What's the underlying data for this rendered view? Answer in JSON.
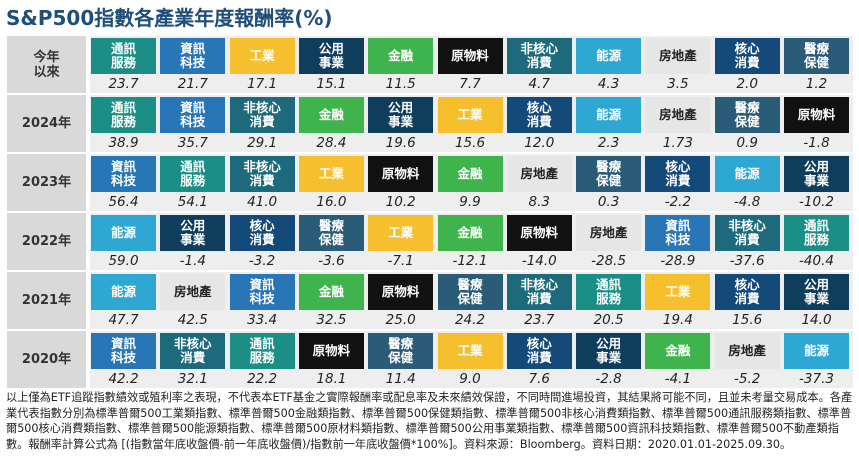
{
  "title": "S&P500指數各產業年度報酬率(%)",
  "colors": {
    "通訊服務": {
      "bg": "#1b8f86",
      "fg": "#ffffff"
    },
    "資訊科技": {
      "bg": "#2976b7",
      "fg": "#ffffff"
    },
    "工業": {
      "bg": "#f5bf2e",
      "fg": "#ffffff"
    },
    "公用事業": {
      "bg": "#0f3e5d",
      "fg": "#ffffff"
    },
    "金融": {
      "bg": "#3fb44d",
      "fg": "#ffffff"
    },
    "原物料": {
      "bg": "#111111",
      "fg": "#ffffff"
    },
    "非核心消費": {
      "bg": "#1c6a7c",
      "fg": "#ffffff"
    },
    "能源": {
      "bg": "#2ea7d3",
      "fg": "#ffffff"
    },
    "房地產": {
      "bg": "#e6e6e6",
      "fg": "#222222"
    },
    "核心消費": {
      "bg": "#144a7a",
      "fg": "#ffffff"
    },
    "醫療保健": {
      "bg": "#2a5c78",
      "fg": "#ffffff"
    }
  },
  "chart_data": {
    "type": "table",
    "rows": [
      {
        "label": "今年\n以來",
        "cells": [
          {
            "sector": "通訊服務",
            "text": "通訊\n服務",
            "value": "23.7"
          },
          {
            "sector": "資訊科技",
            "text": "資訊\n科技",
            "value": "21.7"
          },
          {
            "sector": "工業",
            "text": "工業",
            "value": "17.1"
          },
          {
            "sector": "公用事業",
            "text": "公用\n事業",
            "value": "15.1"
          },
          {
            "sector": "金融",
            "text": "金融",
            "value": "11.5"
          },
          {
            "sector": "原物料",
            "text": "原物料",
            "value": "7.7"
          },
          {
            "sector": "非核心消費",
            "text": "非核心\n消費",
            "value": "4.7"
          },
          {
            "sector": "能源",
            "text": "能源",
            "value": "4.3"
          },
          {
            "sector": "房地產",
            "text": "房地產",
            "value": "3.5"
          },
          {
            "sector": "核心消費",
            "text": "核心\n消費",
            "value": "2.0"
          },
          {
            "sector": "醫療保健",
            "text": "醫療\n保健",
            "value": "1.2"
          }
        ]
      },
      {
        "label": "2024年",
        "cells": [
          {
            "sector": "通訊服務",
            "text": "通訊\n服務",
            "value": "38.9"
          },
          {
            "sector": "資訊科技",
            "text": "資訊\n科技",
            "value": "35.7"
          },
          {
            "sector": "非核心消費",
            "text": "非核心\n消費",
            "value": "29.1"
          },
          {
            "sector": "金融",
            "text": "金融",
            "value": "28.4"
          },
          {
            "sector": "公用事業",
            "text": "公用\n事業",
            "value": "19.6"
          },
          {
            "sector": "工業",
            "text": "工業",
            "value": "15.6"
          },
          {
            "sector": "核心消費",
            "text": "核心\n消費",
            "value": "12.0"
          },
          {
            "sector": "能源",
            "text": "能源",
            "value": "2.3"
          },
          {
            "sector": "房地產",
            "text": "房地產",
            "value": "1.73"
          },
          {
            "sector": "醫療保健",
            "text": "醫療\n保健",
            "value": "0.9"
          },
          {
            "sector": "原物料",
            "text": "原物料",
            "value": "-1.8"
          }
        ]
      },
      {
        "label": "2023年",
        "cells": [
          {
            "sector": "資訊科技",
            "text": "資訊\n科技",
            "value": "56.4"
          },
          {
            "sector": "通訊服務",
            "text": "通訊\n服務",
            "value": "54.1"
          },
          {
            "sector": "非核心消費",
            "text": "非核心\n消費",
            "value": "41.0"
          },
          {
            "sector": "工業",
            "text": "工業",
            "value": "16.0"
          },
          {
            "sector": "原物料",
            "text": "原物料",
            "value": "10.2"
          },
          {
            "sector": "金融",
            "text": "金融",
            "value": "9.9"
          },
          {
            "sector": "房地產",
            "text": "房地產",
            "value": "8.3"
          },
          {
            "sector": "醫療保健",
            "text": "醫療\n保健",
            "value": "0.3"
          },
          {
            "sector": "核心消費",
            "text": "核心\n消費",
            "value": "-2.2"
          },
          {
            "sector": "能源",
            "text": "能源",
            "value": "-4.8"
          },
          {
            "sector": "公用事業",
            "text": "公用\n事業",
            "value": "-10.2"
          }
        ]
      },
      {
        "label": "2022年",
        "cells": [
          {
            "sector": "能源",
            "text": "能源",
            "value": "59.0"
          },
          {
            "sector": "公用事業",
            "text": "公用\n事業",
            "value": "-1.4"
          },
          {
            "sector": "核心消費",
            "text": "核心\n消費",
            "value": "-3.2"
          },
          {
            "sector": "醫療保健",
            "text": "醫療\n保健",
            "value": "-3.6"
          },
          {
            "sector": "工業",
            "text": "工業",
            "value": "-7.1"
          },
          {
            "sector": "金融",
            "text": "金融",
            "value": "-12.1"
          },
          {
            "sector": "原物料",
            "text": "原物料",
            "value": "-14.0"
          },
          {
            "sector": "房地產",
            "text": "房地產",
            "value": "-28.5"
          },
          {
            "sector": "資訊科技",
            "text": "資訊\n科技",
            "value": "-28.9"
          },
          {
            "sector": "非核心消費",
            "text": "非核心\n消費",
            "value": "-37.6"
          },
          {
            "sector": "通訊服務",
            "text": "通訊\n服務",
            "value": "-40.4"
          }
        ]
      },
      {
        "label": "2021年",
        "cells": [
          {
            "sector": "能源",
            "text": "能源",
            "value": "47.7"
          },
          {
            "sector": "房地產",
            "text": "房地產",
            "value": "42.5"
          },
          {
            "sector": "資訊科技",
            "text": "資訊\n科技",
            "value": "33.4"
          },
          {
            "sector": "金融",
            "text": "金融",
            "value": "32.5"
          },
          {
            "sector": "原物料",
            "text": "原物料",
            "value": "25.0"
          },
          {
            "sector": "醫療保健",
            "text": "醫療\n保健",
            "value": "24.2"
          },
          {
            "sector": "非核心消費",
            "text": "非核心\n消費",
            "value": "23.7"
          },
          {
            "sector": "通訊服務",
            "text": "通訊\n服務",
            "value": "20.5"
          },
          {
            "sector": "工業",
            "text": "工業",
            "value": "19.4"
          },
          {
            "sector": "核心消費",
            "text": "核心\n消費",
            "value": "15.6"
          },
          {
            "sector": "公用事業",
            "text": "公用\n事業",
            "value": "14.0"
          }
        ]
      },
      {
        "label": "2020年",
        "cells": [
          {
            "sector": "資訊科技",
            "text": "資訊\n科技",
            "value": "42.2"
          },
          {
            "sector": "非核心消費",
            "text": "非核心\n消費",
            "value": "32.1"
          },
          {
            "sector": "通訊服務",
            "text": "通訊\n服務",
            "value": "22.2"
          },
          {
            "sector": "原物料",
            "text": "原物料",
            "value": "18.1"
          },
          {
            "sector": "醫療保健",
            "text": "醫療\n保健",
            "value": "11.4"
          },
          {
            "sector": "工業",
            "text": "工業",
            "value": "9.0"
          },
          {
            "sector": "核心消費",
            "text": "核心\n消費",
            "value": "7.6"
          },
          {
            "sector": "公用事業",
            "text": "公用\n事業",
            "value": "-2.8"
          },
          {
            "sector": "金融",
            "text": "金融",
            "value": "-4.1"
          },
          {
            "sector": "房地產",
            "text": "房地產",
            "value": "-5.2"
          },
          {
            "sector": "能源",
            "text": "能源",
            "value": "-37.3"
          }
        ]
      }
    ]
  },
  "footnote": "以上僅為ETF追蹤指數績效或殖利率之表現，不代表本ETF基金之實際報酬率或配息率及未來績效保證，不同時間進場投資，其結果將可能不同，且並未考量交易成本。各產業代表指數分別為標準普爾500工業類指數、標準普爾500金融類指數、標準普爾500保健類指數、標準普爾500非核心消費類指數、標準普爾500通訊服務類指數、標準普爾500核心消費類指數、標準普爾500能源類指數、標準普爾500原材料類指數、標準普爾500公用事業類指數、標準普爾500資訊科技類指數、標準普爾500不動產類指數。報酬率計算公式為 [(指數當年底收盤價-前一年底收盤價)/指數前一年底收盤價*100%]。資料來源：Bloomberg。資料日期：2020.01.01-2025.09.30。"
}
